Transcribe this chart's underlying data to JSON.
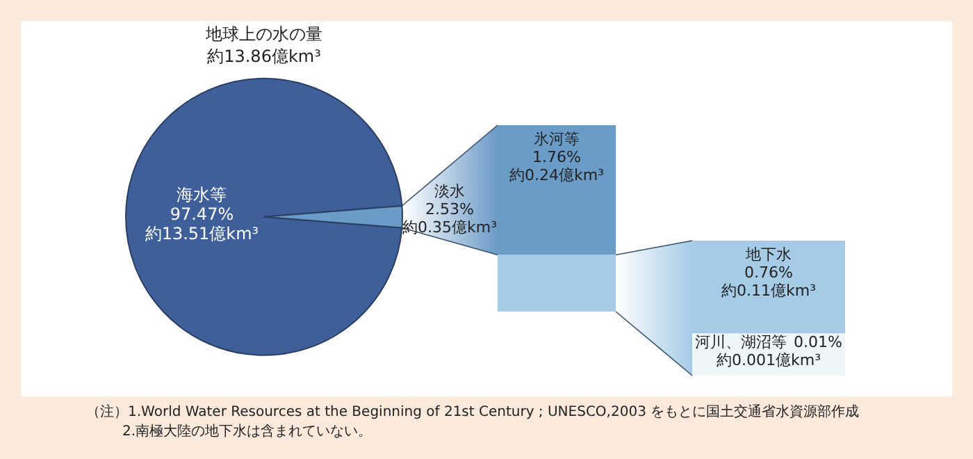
{
  "chart_data": [
    {
      "type": "pie",
      "title": "地球上の水の量",
      "subtitle": "約13.86億km³",
      "categories": [
        "海水等",
        "淡水"
      ],
      "values": [
        97.47,
        2.53
      ],
      "colors": [
        "#3e5f9a",
        "#6b9bc7"
      ],
      "value_labels": [
        "97.47%\n約13.51億km³",
        "2.53%\n約0.35億km³"
      ],
      "annotations": [
        "（注）1.World Water Resources at the Beginning of 21st Century ; UNESCO,2003 をもとに国土交通省水資源部作成",
        "2.南極大陸の地下水は含まれていない。"
      ]
    },
    {
      "type": "other",
      "series": [
        {
          "name": "氷河等",
          "color": "#6b9bc7",
          "values": [
            1.76
          ],
          "value_labels": [
            "1.76%\n約0.24億km³"
          ]
        }
      ]
    },
    {
      "type": "other",
      "series": [
        {
          "name": "河川、湖沼等",
          "color": "#eef6f8",
          "values": [
            0.01
          ],
          "value_labels": [
            "0.01%\n約0.001億km³"
          ]
        },
        {
          "name": "地下水",
          "color": "#a5cbe6",
          "values": [
            0.76
          ],
          "value_labels": [
            "0.76%\n約0.11億km³"
          ]
        }
      ]
    }
  ]
}
